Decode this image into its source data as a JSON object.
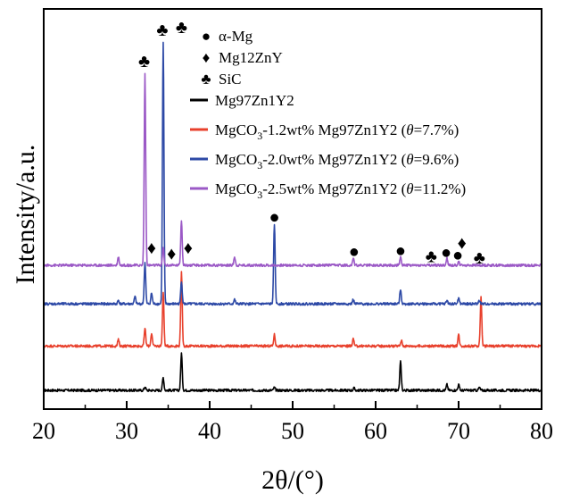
{
  "chart_data": {
    "type": "line",
    "title": "",
    "xlabel": "2θ/(°)",
    "ylabel": "Intensity/a.u.",
    "xlim": [
      20,
      80
    ],
    "x_ticks": [
      "20",
      "30",
      "40",
      "50",
      "60",
      "70",
      "80"
    ],
    "grid": false,
    "legend_position": "top-right",
    "marker_legend": [
      {
        "symbol": "●",
        "label": "α-Mg"
      },
      {
        "symbol": "♦",
        "label": "Mg12ZnY"
      },
      {
        "symbol": "♣",
        "label": "SiC"
      }
    ],
    "series": [
      {
        "name": "Mg97Zn1Y2",
        "label_main": "Mg97Zn1Y2",
        "label_sub": "",
        "label_rest": "",
        "theta": "",
        "color": "#000000",
        "baseline": 0.0,
        "peaks": [
          [
            32.2,
            0.5
          ],
          [
            34.4,
            1.8
          ],
          [
            36.6,
            5.2
          ],
          [
            47.8,
            0.4
          ],
          [
            57.4,
            0.3
          ],
          [
            63.0,
            4.0
          ],
          [
            68.6,
            0.8
          ],
          [
            70.0,
            0.8
          ],
          [
            72.5,
            0.4
          ]
        ]
      },
      {
        "name": "MgCO3-1.2wt% Mg97Zn1Y2 (θ=7.7%)",
        "label_main": "MgCO",
        "label_sub": "3",
        "label_rest": "-1.2wt% Mg97Zn1Y2 (",
        "theta": "=7.7%)",
        "color": "#e8402c",
        "baseline": 6.2,
        "peaks": [
          [
            29.0,
            0.9
          ],
          [
            32.2,
            2.5
          ],
          [
            33.0,
            1.8
          ],
          [
            34.4,
            7.5
          ],
          [
            36.6,
            10.3
          ],
          [
            47.8,
            1.6
          ],
          [
            57.3,
            1.0
          ],
          [
            63.1,
            0.8
          ],
          [
            70.0,
            1.6
          ],
          [
            72.7,
            6.8
          ]
        ]
      },
      {
        "name": "MgCO3-2.0wt% Mg97Zn1Y2 (θ=9.6%)",
        "label_main": "MgCO",
        "label_sub": "3",
        "label_rest": "-2.0wt% Mg97Zn1Y2 (",
        "theta": "=9.6%)",
        "color": "#2d49a6",
        "baseline": 12.1,
        "peaks": [
          [
            29.0,
            0.5
          ],
          [
            31.0,
            1.0
          ],
          [
            32.2,
            5.8
          ],
          [
            33.0,
            1.5
          ],
          [
            34.4,
            36.6
          ],
          [
            36.6,
            3.2
          ],
          [
            43.0,
            0.6
          ],
          [
            47.8,
            11.2
          ],
          [
            57.3,
            0.6
          ],
          [
            63.0,
            2.1
          ],
          [
            68.6,
            0.5
          ],
          [
            70.0,
            0.8
          ],
          [
            72.5,
            0.5
          ]
        ]
      },
      {
        "name": "MgCO3-2.5wt% Mg97Zn1Y2 (θ=11.2%)",
        "label_main": "MgCO",
        "label_sub": "3",
        "label_rest": "-2.5wt% Mg97Zn1Y2 (",
        "theta": "=11.2%)",
        "color": "#9b59c6",
        "baseline": 17.5,
        "peaks": [
          [
            29.0,
            1.2
          ],
          [
            32.2,
            26.8
          ],
          [
            34.4,
            2.5
          ],
          [
            36.6,
            6.3
          ],
          [
            43.0,
            1.2
          ],
          [
            57.3,
            1.0
          ],
          [
            63.0,
            1.2
          ],
          [
            68.6,
            1.0
          ],
          [
            70.0,
            0.5
          ]
        ]
      }
    ],
    "annotations": [
      {
        "symbol": "♣",
        "x": 32.1,
        "y": 46.1
      },
      {
        "symbol": "♣",
        "x": 34.3,
        "y": 50.5
      },
      {
        "symbol": "♣",
        "x": 36.6,
        "y": 50.9
      },
      {
        "symbol": "♦",
        "x": 33.0,
        "y": 20.0
      },
      {
        "symbol": "♦",
        "x": 35.4,
        "y": 19.2
      },
      {
        "symbol": "♦",
        "x": 37.4,
        "y": 20.0
      },
      {
        "symbol": "●",
        "x": 47.8,
        "y": 24.3
      },
      {
        "symbol": "●",
        "x": 57.4,
        "y": 19.5
      },
      {
        "symbol": "●",
        "x": 63.0,
        "y": 19.6
      },
      {
        "symbol": "♣",
        "x": 66.7,
        "y": 18.8
      },
      {
        "symbol": "●",
        "x": 68.5,
        "y": 19.4
      },
      {
        "symbol": "●",
        "x": 69.9,
        "y": 19.0
      },
      {
        "symbol": "♦",
        "x": 70.4,
        "y": 20.7
      },
      {
        "symbol": "♣",
        "x": 72.5,
        "y": 18.6
      }
    ]
  }
}
